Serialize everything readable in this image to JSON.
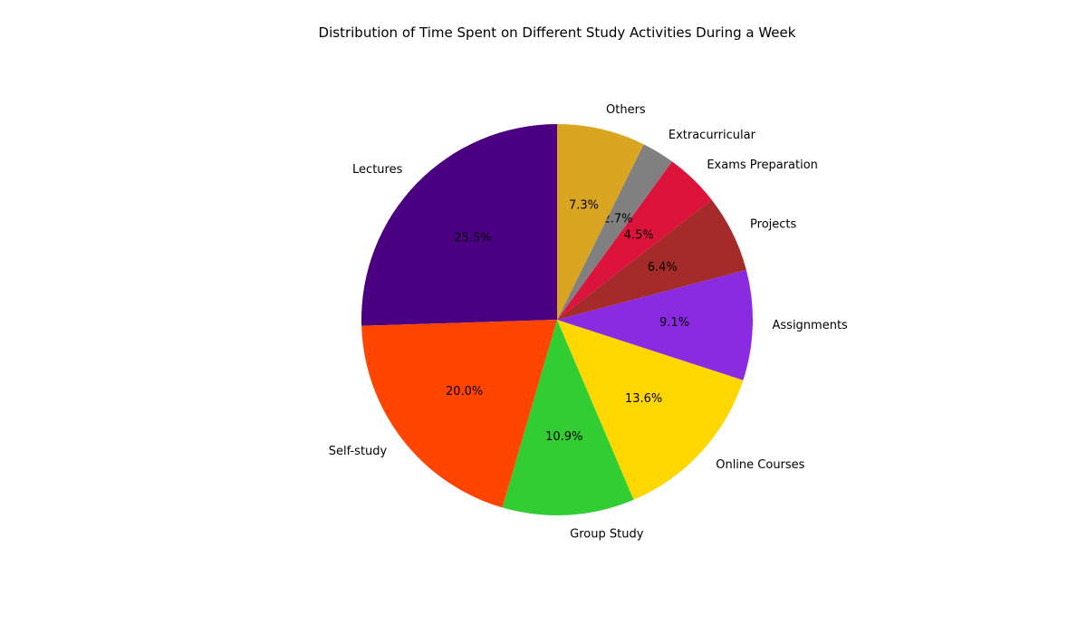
{
  "chart_data": {
    "type": "pie",
    "title": "Distribution of Time Spent on Different Study Activities During a Week",
    "start_angle_deg": 90,
    "direction": "counterclockwise",
    "slices": [
      {
        "label": "Lectures",
        "value": 25.5,
        "pct_label": "25.5%",
        "color": "#4B0082"
      },
      {
        "label": "Self-study",
        "value": 20.0,
        "pct_label": "20.0%",
        "color": "#FF4500"
      },
      {
        "label": "Group Study",
        "value": 10.9,
        "pct_label": "10.9%",
        "color": "#32CD32"
      },
      {
        "label": "Online Courses",
        "value": 13.6,
        "pct_label": "13.6%",
        "color": "#FFD700"
      },
      {
        "label": "Assignments",
        "value": 9.1,
        "pct_label": "9.1%",
        "color": "#8A2BE2"
      },
      {
        "label": "Projects",
        "value": 6.4,
        "pct_label": "6.4%",
        "color": "#A52A2A"
      },
      {
        "label": "Exams Preparation",
        "value": 4.5,
        "pct_label": "4.5%",
        "color": "#DC143C"
      },
      {
        "label": "Extracurricular",
        "value": 2.7,
        "pct_label": "2.7%",
        "color": "#808080"
      },
      {
        "label": "Others",
        "value": 7.3,
        "pct_label": "7.3%",
        "color": "#DAA520"
      }
    ]
  }
}
